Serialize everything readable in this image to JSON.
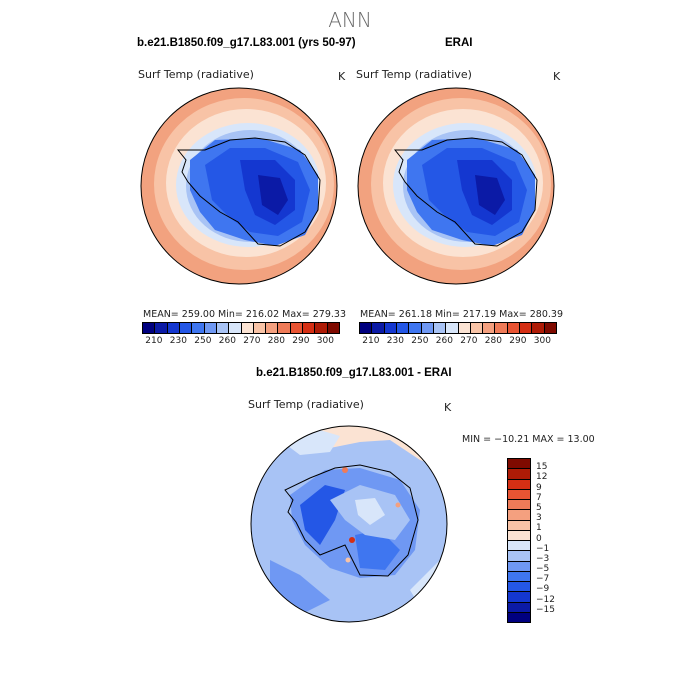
{
  "suptitle": "ANN",
  "panels": [
    {
      "title": "b.e21.B1850.f09_g17.L83.001 (yrs 50-97)",
      "variable": "Surf Temp (radiative)",
      "unit": "K",
      "stats": "MEAN= 259.00   Min= 216.02   Max= 279.33"
    },
    {
      "title": "ERAI",
      "variable": "Surf Temp (radiative)",
      "unit": "K",
      "stats": "MEAN= 261.18   Min= 217.19   Max= 280.39"
    }
  ],
  "abs_colorbar": {
    "colors": [
      "#00007f",
      "#0b1aa6",
      "#1437d0",
      "#2457e6",
      "#3f76f0",
      "#6f98f3",
      "#a8c3f5",
      "#d8e6fa",
      "#fbe3d3",
      "#f8c3a6",
      "#f4a07f",
      "#ef7b58",
      "#e85433",
      "#d52f14",
      "#ae1b06",
      "#7f0a00"
    ],
    "labels": [
      "210",
      "230",
      "250",
      "260",
      "270",
      "280",
      "290",
      "300"
    ]
  },
  "diff_panel": {
    "title": "b.e21.B1850.f09_g17.L83.001 - ERAI",
    "variable": "Surf Temp (radiative)",
    "unit": "K",
    "minmax": "MIN = −10.21 MAX =  13.00"
  },
  "diff_colorbar": {
    "colors": [
      "#7f0a00",
      "#ae1b06",
      "#d52f14",
      "#e85433",
      "#ef7b58",
      "#f4a07f",
      "#f8c3a6",
      "#fbe3d3",
      "#d8e6fa",
      "#a8c3f5",
      "#6f98f3",
      "#3f76f0",
      "#2457e6",
      "#1437d0",
      "#0b1aa6",
      "#00007f"
    ],
    "labels": [
      "15",
      "12",
      "9",
      "7",
      "5",
      "3",
      "1",
      "0",
      "−1",
      "−3",
      "−5",
      "−7",
      "−9",
      "−12",
      "−15"
    ]
  }
}
